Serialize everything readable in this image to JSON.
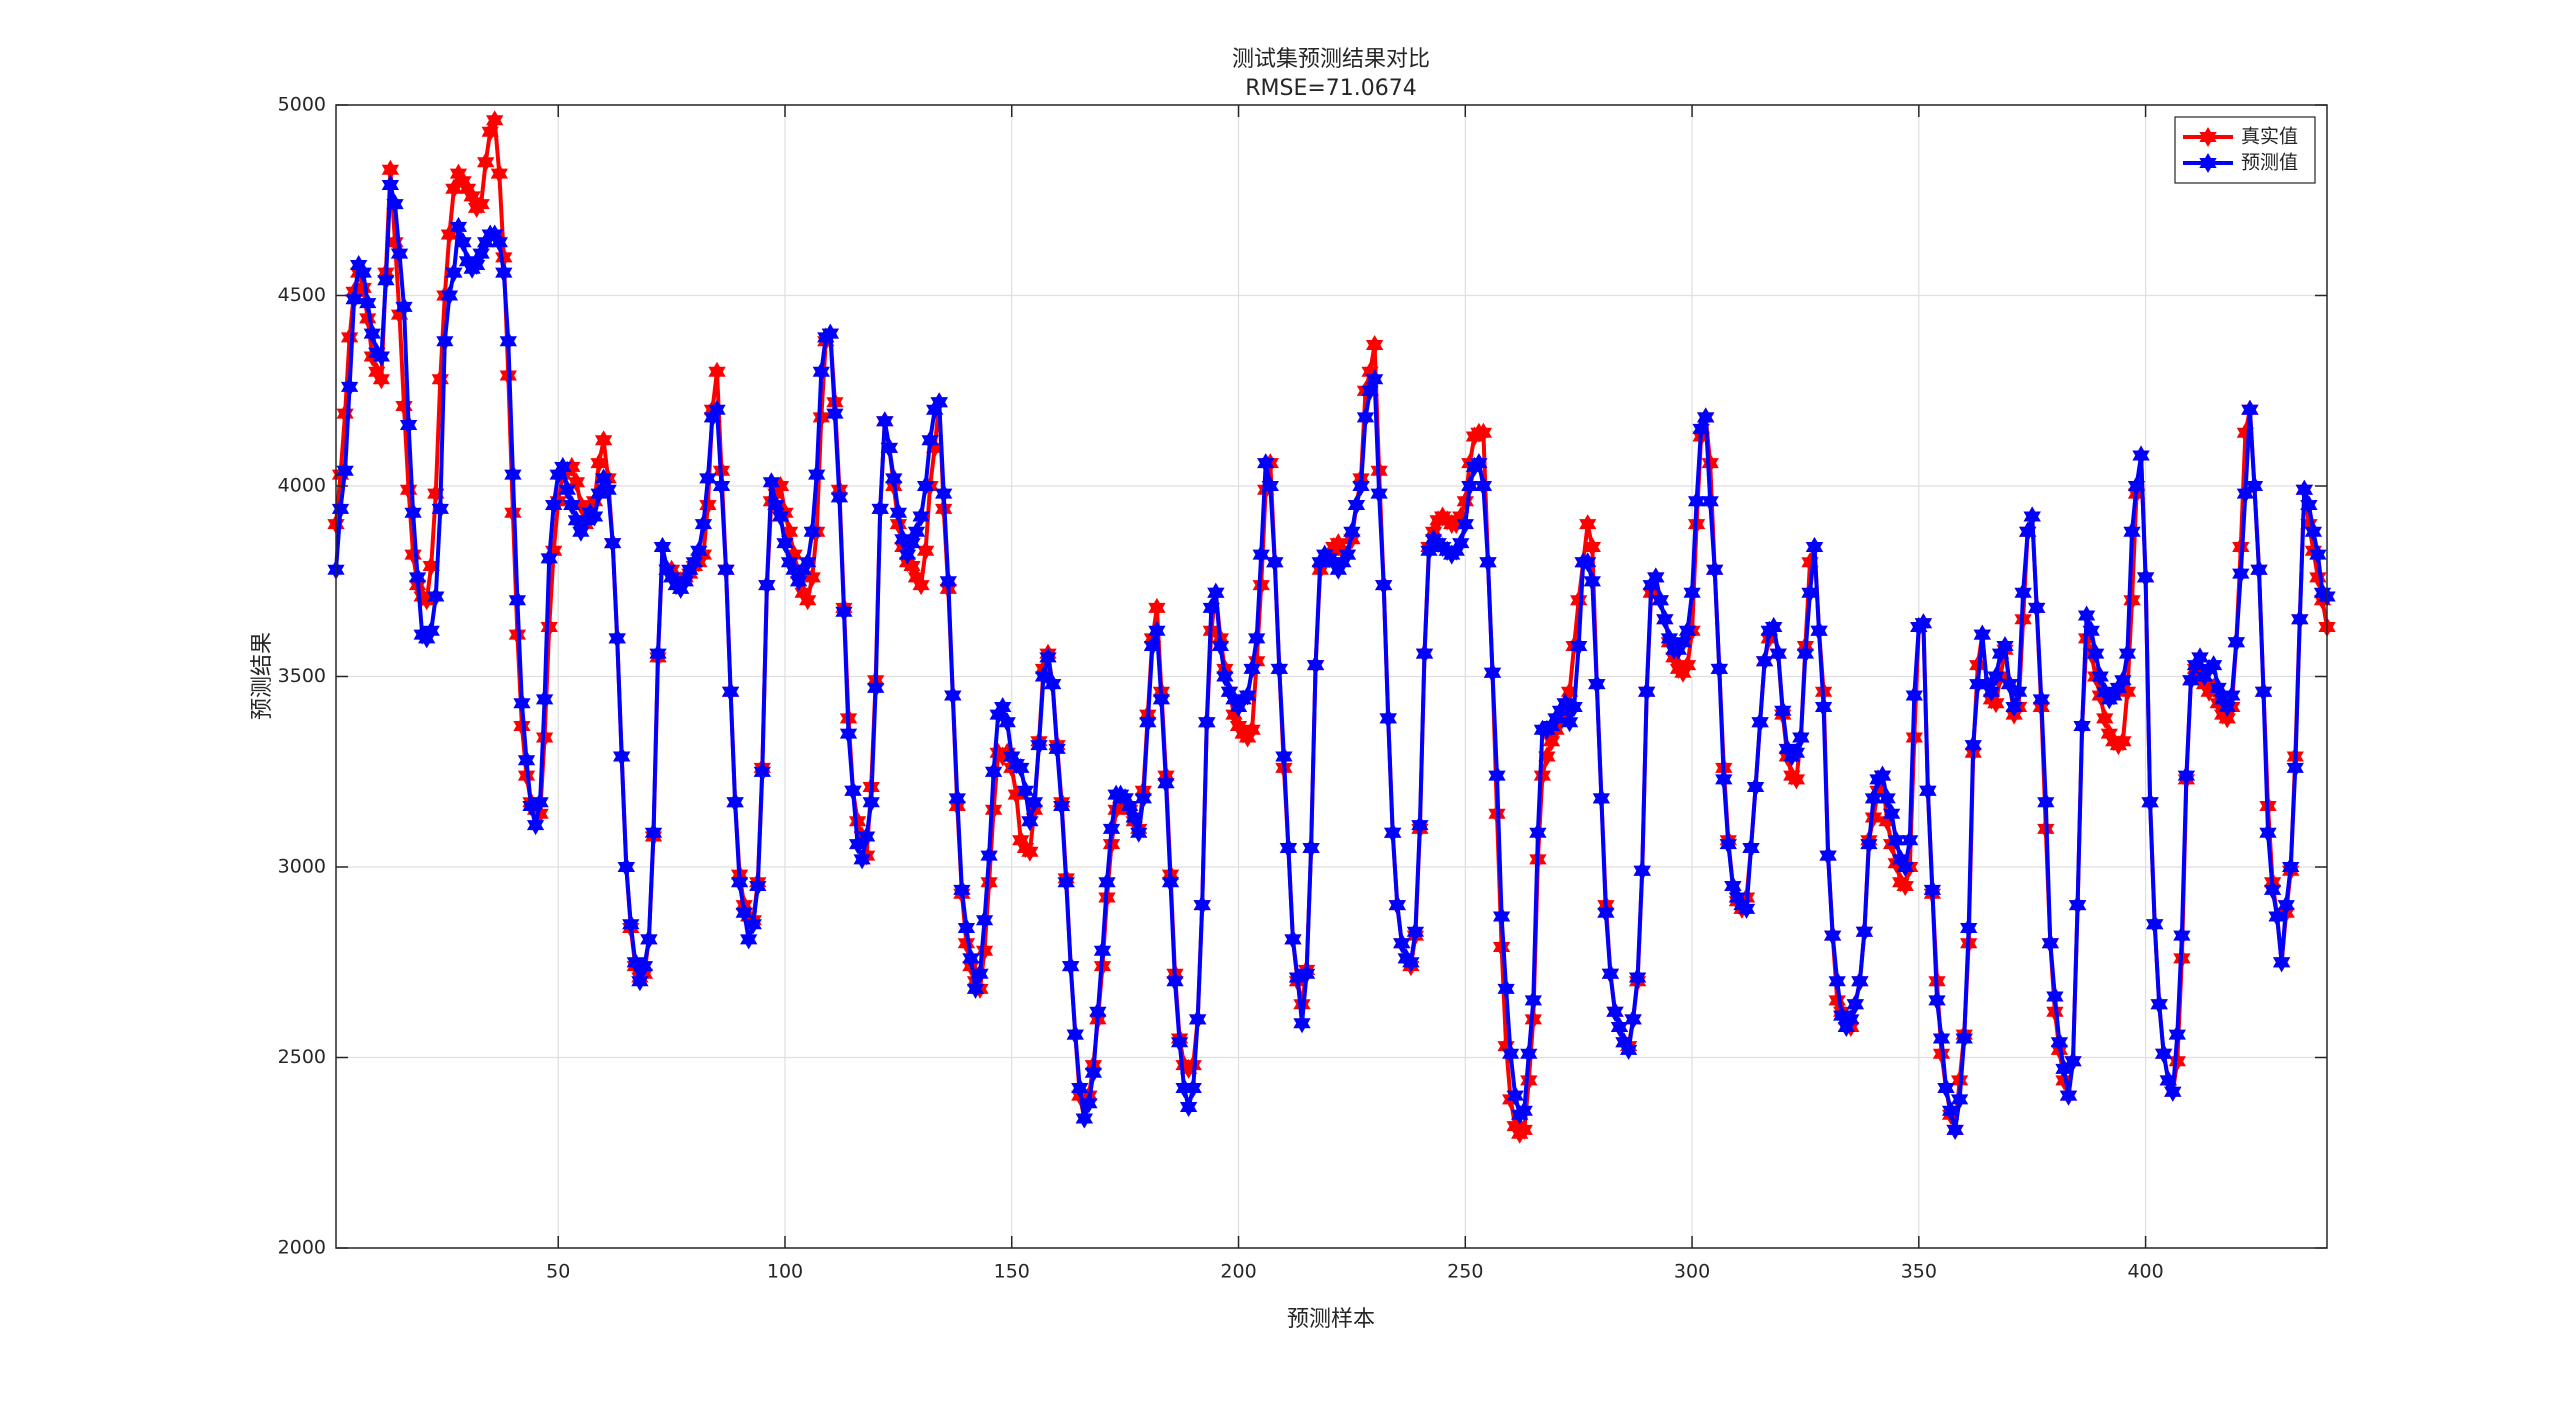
{
  "chart_data": {
    "type": "line",
    "title": "测试集预测结果对比",
    "subtitle": "RMSE=71.0674",
    "xlabel": "预测样本",
    "ylabel": "预测结果",
    "xlim": [
      1,
      440
    ],
    "ylim": [
      2000,
      5000
    ],
    "xticks": [
      50,
      100,
      150,
      200,
      250,
      300,
      350,
      400
    ],
    "yticks": [
      2000,
      2500,
      3000,
      3500,
      4000,
      4500,
      5000
    ],
    "grid": true,
    "legend": "northeast",
    "marker": "hexagram",
    "x": [
      1,
      2,
      3,
      4,
      5,
      6,
      7,
      8,
      9,
      10,
      11,
      12,
      13,
      14,
      15,
      16,
      17,
      18,
      19,
      20,
      21,
      22,
      23,
      24,
      25,
      26,
      27,
      28,
      29,
      30,
      31,
      32,
      33,
      34,
      35,
      36,
      37,
      38,
      39,
      40,
      41,
      42,
      43,
      44,
      45,
      46,
      47,
      48,
      49,
      50,
      51,
      52,
      53,
      54,
      55,
      56,
      57,
      58,
      59,
      60,
      61,
      62,
      63,
      64,
      65,
      66,
      67,
      68,
      69,
      70,
      71,
      72,
      73,
      74,
      75,
      76,
      77,
      78,
      79,
      80,
      81,
      82,
      83,
      84,
      85,
      86,
      87,
      88,
      89,
      90,
      91,
      92,
      93,
      94,
      95,
      96,
      97,
      98,
      99,
      100,
      101,
      102,
      103,
      104,
      105,
      106,
      107,
      108,
      109,
      110,
      111,
      112,
      113,
      114,
      115,
      116,
      117,
      118,
      119,
      120,
      121,
      122,
      123,
      124,
      125,
      126,
      127,
      128,
      129,
      130,
      131,
      132,
      133,
      134,
      135,
      136,
      137,
      138,
      139,
      140,
      141,
      142,
      143,
      144,
      145,
      146,
      147,
      148,
      149,
      150,
      151,
      152,
      153,
      154,
      155,
      156,
      157,
      158,
      159,
      160,
      161,
      162,
      163,
      164,
      165,
      166,
      167,
      168,
      169,
      170,
      171,
      172,
      173,
      174,
      175,
      176,
      177,
      178,
      179,
      180,
      181,
      182,
      183,
      184,
      185,
      186,
      187,
      188,
      189,
      190,
      191,
      192,
      193,
      194,
      195,
      196,
      197,
      198,
      199,
      200,
      201,
      202,
      203,
      204,
      205,
      206,
      207,
      208,
      209,
      210,
      211,
      212,
      213,
      214,
      215,
      216,
      217,
      218,
      219,
      220,
      221,
      222,
      223,
      224,
      225,
      226,
      227,
      228,
      229,
      230,
      231,
      232,
      233,
      234,
      235,
      236,
      237,
      238,
      239,
      240,
      241,
      242,
      243,
      244,
      245,
      246,
      247,
      248,
      249,
      250,
      251,
      252,
      253,
      254,
      255,
      256,
      257,
      258,
      259,
      260,
      261,
      262,
      263,
      264,
      265,
      266,
      267,
      268,
      269,
      270,
      271,
      272,
      273,
      274,
      275,
      276,
      277,
      278,
      279,
      280,
      281,
      282,
      283,
      284,
      285,
      286,
      287,
      288,
      289,
      290,
      291,
      292,
      293,
      294,
      295,
      296,
      297,
      298,
      299,
      300,
      301,
      302,
      303,
      304,
      305,
      306,
      307,
      308,
      309,
      310,
      311,
      312,
      313,
      314,
      315,
      316,
      317,
      318,
      319,
      320,
      321,
      322,
      323,
      324,
      325,
      326,
      327,
      328,
      329,
      330,
      331,
      332,
      333,
      334,
      335,
      336,
      337,
      338,
      339,
      340,
      341,
      342,
      343,
      344,
      345,
      346,
      347,
      348,
      349,
      350,
      351,
      352,
      353,
      354,
      355,
      356,
      357,
      358,
      359,
      360,
      361,
      362,
      363,
      364,
      365,
      366,
      367,
      368,
      369,
      370,
      371,
      372,
      373,
      374,
      375,
      376,
      377,
      378,
      379,
      380,
      381,
      382,
      383,
      384,
      385,
      386,
      387,
      388,
      389,
      390,
      391,
      392,
      393,
      394,
      395,
      396,
      397,
      398,
      399,
      400,
      401,
      402,
      403,
      404,
      405,
      406,
      407,
      408,
      409,
      410,
      411,
      412,
      413,
      414,
      415,
      416,
      417,
      418,
      419,
      420,
      421,
      422,
      423,
      424,
      425,
      426,
      427,
      428,
      429,
      430,
      431,
      432,
      433,
      434,
      435,
      436,
      437,
      438,
      439,
      440
    ],
    "series": [
      {
        "name": "真实值",
        "color": "#ff0000",
        "values": [
          3900,
          4030,
          4190,
          4390,
          4510,
          4560,
          4520,
          4440,
          4340,
          4300,
          4280,
          4560,
          4830,
          4640,
          4450,
          4210,
          3990,
          3820,
          3740,
          3710,
          3700,
          3790,
          3980,
          4280,
          4500,
          4660,
          4780,
          4820,
          4800,
          4780,
          4760,
          4730,
          4740,
          4850,
          4930,
          4960,
          4820,
          4600,
          4290,
          3930,
          3610,
          3370,
          3240,
          3170,
          3150,
          3140,
          3340,
          3630,
          3830,
          3960,
          4030,
          4040,
          4050,
          4010,
          3950,
          3900,
          3920,
          3960,
          4060,
          4120,
          4020,
          3850,
          3600,
          3290,
          3000,
          2840,
          2740,
          2710,
          2720,
          2810,
          3080,
          3550,
          3840,
          3780,
          3780,
          3760,
          3750,
          3760,
          3770,
          3790,
          3800,
          3820,
          3950,
          4200,
          4300,
          4040,
          3780,
          3460,
          3170,
          2980,
          2900,
          2870,
          2860,
          2960,
          3260,
          3740,
          3960,
          3980,
          4000,
          3930,
          3880,
          3820,
          3770,
          3720,
          3700,
          3760,
          3880,
          4180,
          4380,
          4400,
          4220,
          3990,
          3680,
          3390,
          3200,
          3120,
          3080,
          3030,
          3210,
          3490,
          3940,
          4170,
          4100,
          4000,
          3900,
          3840,
          3800,
          3790,
          3760,
          3740,
          3830,
          4000,
          4100,
          4220,
          3940,
          3730,
          3450,
          3160,
          2930,
          2800,
          2740,
          2700,
          2680,
          2780,
          2960,
          3150,
          3300,
          3290,
          3300,
          3260,
          3190,
          3070,
          3050,
          3040,
          3150,
          3330,
          3520,
          3560,
          3480,
          3320,
          3170,
          2970,
          2740,
          2560,
          2400,
          2340,
          2400,
          2480,
          2600,
          2740,
          2920,
          3060,
          3150,
          3180,
          3180,
          3150,
          3120,
          3100,
          3200,
          3400,
          3600,
          3680,
          3460,
          3240,
          2980,
          2720,
          2550,
          2480,
          2470,
          2480,
          2600,
          2900,
          3380,
          3620,
          3720,
          3600,
          3520,
          3460,
          3400,
          3370,
          3350,
          3340,
          3360,
          3540,
          3740,
          3990,
          4060,
          3800,
          3520,
          3260,
          3050,
          2810,
          2700,
          2640,
          2730,
          3050,
          3530,
          3780,
          3800,
          3820,
          3840,
          3850,
          3830,
          3820,
          3860,
          3950,
          4020,
          4250,
          4300,
          4370,
          4040,
          3740,
          3390,
          3090,
          2900,
          2800,
          2760,
          2740,
          2820,
          3100,
          3560,
          3840,
          3880,
          3910,
          3920,
          3910,
          3900,
          3900,
          3920,
          3960,
          4060,
          4130,
          4140,
          4140,
          3800,
          3510,
          3140,
          2790,
          2530,
          2390,
          2320,
          2300,
          2310,
          2440,
          2600,
          3020,
          3240,
          3290,
          3330,
          3360,
          3390,
          3400,
          3460,
          3580,
          3700,
          3800,
          3900,
          3840,
          3480,
          3180,
          2900,
          2720,
          2620,
          2580,
          2540,
          2530,
          2600,
          2700,
          2990,
          3460,
          3720,
          3760,
          3700,
          3650,
          3590,
          3550,
          3520,
          3510,
          3530,
          3620,
          3900,
          4130,
          4180,
          4060,
          3780,
          3520,
          3260,
          3070,
          2950,
          2910,
          2890,
          2920,
          3050,
          3210,
          3380,
          3540,
          3600,
          3630,
          3560,
          3400,
          3290,
          3240,
          3230,
          3340,
          3580,
          3800,
          3840,
          3620,
          3460,
          3030,
          2820,
          2650,
          2620,
          2600,
          2580,
          2640,
          2700,
          2830,
          3070,
          3130,
          3200,
          3240,
          3120,
          3060,
          3010,
          2960,
          2950,
          3000,
          3340,
          3630,
          3640,
          3200,
          2930,
          2700,
          2510,
          2420,
          2350,
          2310,
          2440,
          2560,
          2800,
          3300,
          3530,
          3610,
          3480,
          3440,
          3430,
          3500,
          3570,
          3480,
          3400,
          3420,
          3650,
          3880,
          3920,
          3680,
          3420,
          3100,
          2800,
          2620,
          2520,
          2440,
          2400,
          2490,
          2900,
          3370,
          3600,
          3560,
          3500,
          3450,
          3390,
          3350,
          3330,
          3320,
          3330,
          3460,
          3700,
          3980,
          4080,
          3760,
          3170,
          2850,
          2640,
          2510,
          2440,
          2410,
          2490,
          2760,
          3230,
          3490,
          3520,
          3550,
          3480,
          3460,
          3470,
          3430,
          3400,
          3390,
          3420,
          3590,
          3840,
          4140,
          4200,
          4000,
          3780,
          3460,
          3160,
          2960,
          2870,
          2750,
          2880,
          2990,
          3290,
          3650,
          3990,
          3900,
          3830,
          3760,
          3700,
          3630
        ]
      },
      {
        "name": "预测值",
        "color": "#0000ff",
        "values": [
          3780,
          3940,
          4040,
          4260,
          4490,
          4580,
          4560,
          4480,
          4400,
          4350,
          4340,
          4540,
          4790,
          4740,
          4610,
          4470,
          4160,
          3930,
          3760,
          3610,
          3600,
          3620,
          3710,
          3940,
          4380,
          4500,
          4560,
          4680,
          4640,
          4590,
          4570,
          4580,
          4610,
          4640,
          4660,
          4660,
          4640,
          4560,
          4380,
          4030,
          3700,
          3430,
          3280,
          3160,
          3110,
          3170,
          3440,
          3810,
          3950,
          4030,
          4050,
          3990,
          3950,
          3910,
          3880,
          3910,
          3930,
          3920,
          3980,
          4020,
          3990,
          3850,
          3600,
          3290,
          3000,
          2850,
          2750,
          2700,
          2740,
          2810,
          3090,
          3560,
          3840,
          3780,
          3760,
          3740,
          3730,
          3750,
          3780,
          3800,
          3830,
          3900,
          4020,
          4180,
          4200,
          4000,
          3780,
          3460,
          3170,
          2960,
          2880,
          2810,
          2850,
          2950,
          3250,
          3740,
          4010,
          3950,
          3920,
          3850,
          3800,
          3780,
          3750,
          3780,
          3800,
          3880,
          4030,
          4300,
          4390,
          4400,
          4190,
          3970,
          3670,
          3350,
          3200,
          3060,
          3020,
          3080,
          3170,
          3470,
          3940,
          4170,
          4100,
          4020,
          3930,
          3860,
          3820,
          3850,
          3880,
          3920,
          4000,
          4120,
          4200,
          4220,
          3980,
          3750,
          3450,
          3180,
          2940,
          2840,
          2760,
          2680,
          2720,
          2860,
          3030,
          3250,
          3400,
          3420,
          3380,
          3290,
          3270,
          3260,
          3200,
          3120,
          3170,
          3320,
          3500,
          3550,
          3480,
          3310,
          3160,
          2960,
          2740,
          2560,
          2420,
          2340,
          2380,
          2460,
          2620,
          2780,
          2960,
          3100,
          3190,
          3190,
          3180,
          3160,
          3130,
          3090,
          3180,
          3380,
          3580,
          3620,
          3440,
          3220,
          2960,
          2700,
          2540,
          2420,
          2370,
          2420,
          2600,
          2900,
          3380,
          3680,
          3720,
          3580,
          3500,
          3460,
          3440,
          3420,
          3440,
          3450,
          3520,
          3600,
          3820,
          4060,
          4000,
          3800,
          3520,
          3290,
          3050,
          2810,
          2710,
          2590,
          2720,
          3050,
          3530,
          3800,
          3820,
          3810,
          3800,
          3780,
          3800,
          3820,
          3880,
          3950,
          4000,
          4180,
          4250,
          4280,
          3980,
          3740,
          3390,
          3090,
          2900,
          2800,
          2760,
          2750,
          2830,
          3110,
          3560,
          3830,
          3860,
          3850,
          3840,
          3830,
          3820,
          3830,
          3850,
          3900,
          4000,
          4050,
          4060,
          4000,
          3800,
          3510,
          3240,
          2870,
          2680,
          2510,
          2400,
          2350,
          2360,
          2510,
          2650,
          3090,
          3360,
          3360,
          3370,
          3390,
          3410,
          3430,
          3380,
          3420,
          3580,
          3800,
          3800,
          3750,
          3480,
          3180,
          2880,
          2720,
          2620,
          2580,
          2540,
          2520,
          2600,
          2710,
          2990,
          3460,
          3740,
          3760,
          3700,
          3650,
          3600,
          3570,
          3570,
          3590,
          3620,
          3720,
          3960,
          4150,
          4180,
          3960,
          3780,
          3520,
          3230,
          3060,
          2950,
          2920,
          2900,
          2890,
          3050,
          3210,
          3380,
          3540,
          3620,
          3630,
          3560,
          3410,
          3310,
          3290,
          3300,
          3340,
          3560,
          3720,
          3840,
          3620,
          3420,
          3030,
          2820,
          2700,
          2610,
          2580,
          2600,
          2640,
          2700,
          2830,
          3060,
          3180,
          3230,
          3240,
          3180,
          3140,
          3070,
          3020,
          3000,
          3070,
          3450,
          3630,
          3640,
          3200,
          2940,
          2650,
          2550,
          2420,
          2360,
          2310,
          2390,
          2550,
          2840,
          3320,
          3480,
          3610,
          3480,
          3460,
          3500,
          3560,
          3580,
          3480,
          3420,
          3460,
          3720,
          3880,
          3920,
          3680,
          3440,
          3170,
          2800,
          2660,
          2540,
          2470,
          2400,
          2490,
          2900,
          3370,
          3660,
          3620,
          3560,
          3500,
          3460,
          3440,
          3450,
          3470,
          3490,
          3560,
          3880,
          4000,
          4080,
          3760,
          3170,
          2850,
          2640,
          2510,
          2440,
          2410,
          2560,
          2820,
          3240,
          3490,
          3530,
          3550,
          3500,
          3520,
          3530,
          3470,
          3440,
          3420,
          3450,
          3590,
          3770,
          3980,
          4200,
          4000,
          3780,
          3460,
          3090,
          2940,
          2870,
          2750,
          2900,
          3000,
          3260,
          3650,
          3990,
          3950,
          3880,
          3820,
          3720,
          3710
        ]
      }
    ]
  }
}
